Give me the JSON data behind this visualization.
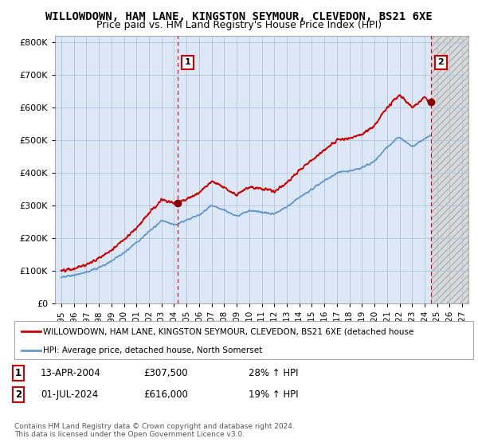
{
  "title": "WILLOWDOWN, HAM LANE, KINGSTON SEYMOUR, CLEVEDON, BS21 6XE",
  "subtitle": "Price paid vs. HM Land Registry's House Price Index (HPI)",
  "legend_entry1": "WILLOWDOWN, HAM LANE, KINGSTON SEYMOUR, CLEVEDON, BS21 6XE (detached house",
  "legend_entry2": "HPI: Average price, detached house, North Somerset",
  "annotation1_date": "13-APR-2004",
  "annotation1_price": "£307,500",
  "annotation1_hpi": "28% ↑ HPI",
  "annotation1_year": 2004.28,
  "annotation1_value": 307500,
  "annotation2_date": "01-JUL-2024",
  "annotation2_price": "£616,000",
  "annotation2_hpi": "19% ↑ HPI",
  "annotation2_year": 2024.5,
  "annotation2_value": 616000,
  "copyright": "Contains HM Land Registry data © Crown copyright and database right 2024.\nThis data is licensed under the Open Government Licence v3.0.",
  "ylim": [
    0,
    820000
  ],
  "xlim_left": 1994.5,
  "xlim_right": 2027.5,
  "hpi_color": "#6699cc",
  "price_color": "#cc0000",
  "plot_bg_color": "#dce8f5",
  "hatch_bg_color": "#e8e8e8",
  "background_color": "#ffffff",
  "title_fontsize": 10,
  "subtitle_fontsize": 9,
  "grid_color": "#b0c4de"
}
